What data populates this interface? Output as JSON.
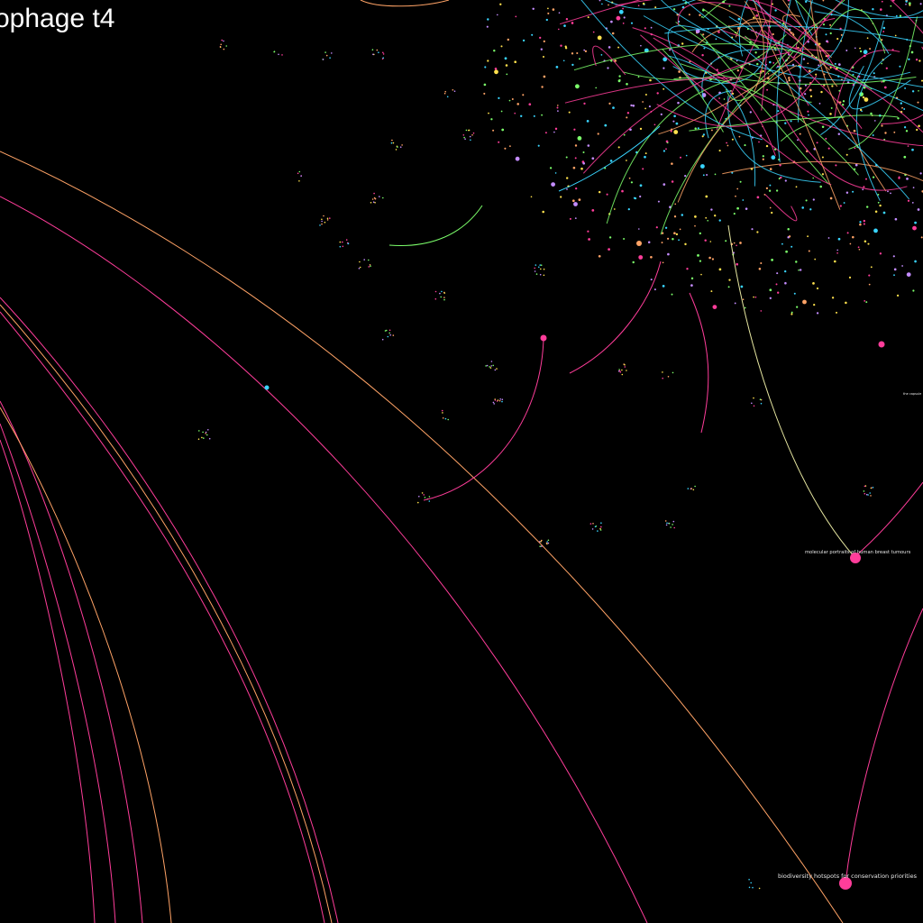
{
  "title": "ophage t4",
  "colors": {
    "background": "#000000",
    "magenta": "#ff3d9a",
    "orange": "#ffa366",
    "cyan": "#39d5ff",
    "green": "#7cff6b",
    "yellow": "#ffe14d",
    "pale": "#e6e6a0",
    "violet": "#c48cff"
  },
  "labels": {
    "breast": "molecular portraits of human breast tumours",
    "biodiversity": "biodiversity hotspots for conservation priorities",
    "capsule": "the capsule"
  }
}
